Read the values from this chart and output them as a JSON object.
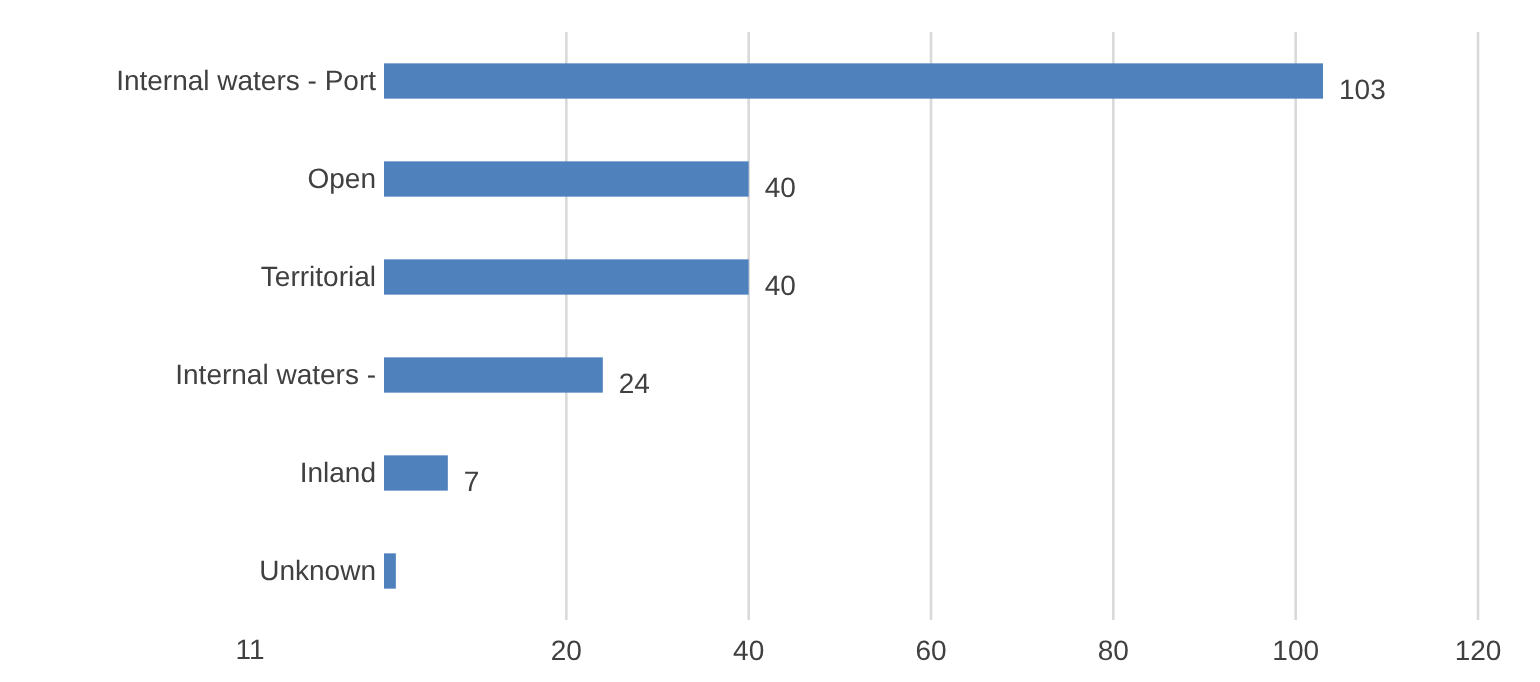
{
  "chart_data": {
    "type": "bar",
    "orientation": "horizontal",
    "categories": [
      "Internal waters - Port",
      "Open",
      "Territorial",
      "Internal waters -",
      "Inland",
      "Unknown"
    ],
    "values": [
      103,
      40,
      40,
      24,
      7,
      1.3
    ],
    "value_labels": [
      "103",
      "40",
      "40",
      "24",
      "7",
      null
    ],
    "color": "#4f81bd",
    "xlim": [
      0,
      120
    ],
    "xticks": [
      20,
      40,
      60,
      80,
      100,
      120
    ],
    "grid": "x",
    "annotations": [
      "11"
    ]
  }
}
